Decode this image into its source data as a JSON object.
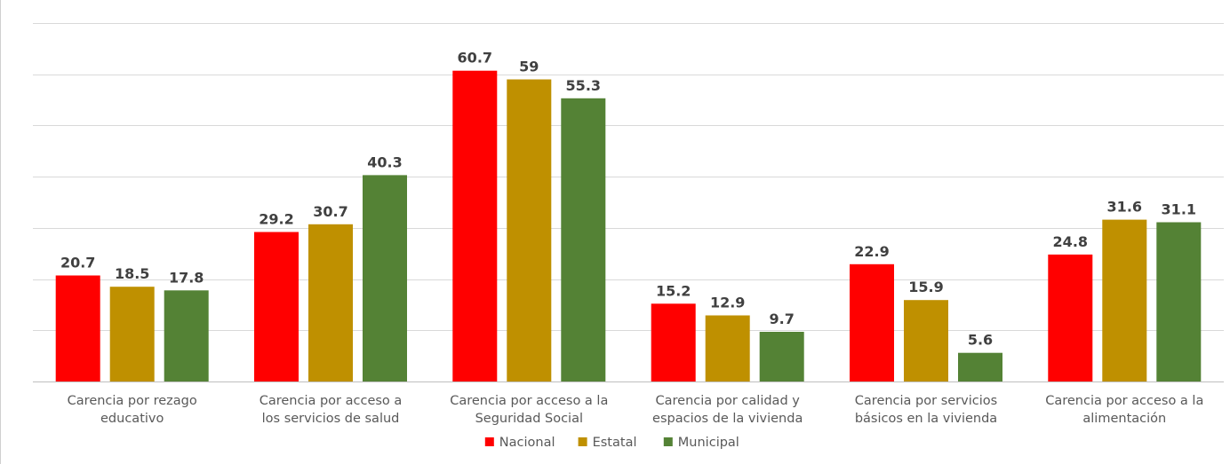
{
  "chart_data": {
    "type": "bar",
    "title": "",
    "xlabel": "",
    "ylabel": "",
    "ylim": [
      0,
      70
    ],
    "grid": true,
    "legend_position": "bottom",
    "categories": [
      [
        "Carencia por rezago",
        "educativo"
      ],
      [
        "Carencia por acceso a",
        "los servicios de salud"
      ],
      [
        "Carencia por acceso a la",
        "Seguridad Social"
      ],
      [
        "Carencia por calidad y",
        "espacios de la vivienda"
      ],
      [
        "Carencia por servicios",
        "básicos en la vivienda"
      ],
      [
        "Carencia por acceso a la",
        "alimentación"
      ]
    ],
    "series": [
      {
        "name": "Nacional",
        "color": "#ff0000",
        "values": [
          20.7,
          29.2,
          60.7,
          15.2,
          22.9,
          24.8
        ]
      },
      {
        "name": "Estatal",
        "color": "#bf9000",
        "values": [
          18.5,
          30.7,
          59,
          12.9,
          15.9,
          31.6
        ]
      },
      {
        "name": "Municipal",
        "color": "#548235",
        "values": [
          17.8,
          40.3,
          55.3,
          9.7,
          5.6,
          31.1
        ]
      }
    ]
  }
}
